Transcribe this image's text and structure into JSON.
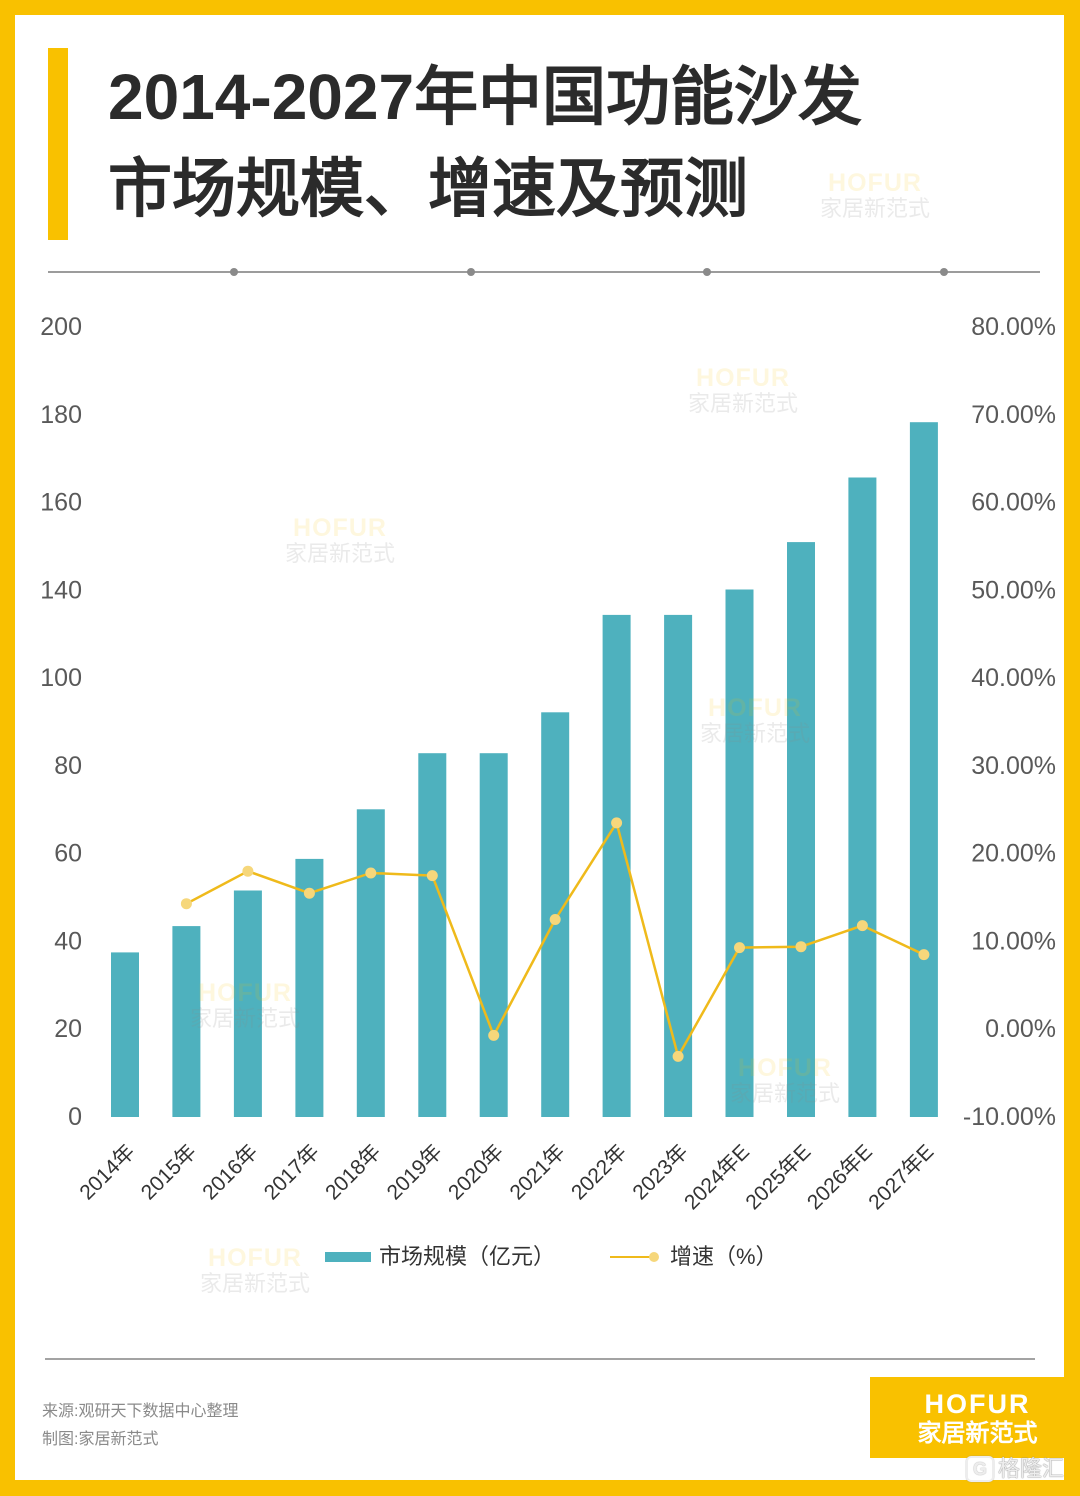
{
  "chart_data": {
    "type": "bar",
    "title_lines": [
      "2014-2027年中国功能沙发",
      "市场规模、增速及预测"
    ],
    "categories": [
      "2014年",
      "2015年",
      "2016年",
      "2017年",
      "2018年",
      "2019年",
      "2020年",
      "2021年",
      "2022年",
      "2023年",
      "2024年E",
      "2025年E",
      "2026年E",
      "2027年E"
    ],
    "y_left": {
      "ticks": [
        0,
        20,
        40,
        60,
        80,
        100,
        140,
        160,
        180,
        200
      ],
      "tick_labels": [
        "0",
        "20",
        "40",
        "60",
        "80",
        "100",
        "140",
        "160",
        "180",
        "200"
      ],
      "range": [
        0,
        200
      ]
    },
    "y_right": {
      "ticks": [
        -10,
        0,
        10,
        20,
        30,
        40,
        50,
        60,
        70,
        80
      ],
      "tick_labels": [
        "-10.00%",
        "0.00%",
        "10.00%",
        "20.00%",
        "30.00%",
        "40.00%",
        "50.00%",
        "60.00%",
        "70.00%",
        "80.00%"
      ],
      "range": [
        -10,
        80
      ]
    },
    "series": [
      {
        "name": "市场规模（亿元）",
        "type": "bar",
        "axis": "left",
        "values": [
          37.5,
          43.5,
          51.6,
          58.8,
          70.1,
          82.9,
          82.9,
          92.2,
          128.8,
          128.8,
          140.2,
          151.0,
          165.7,
          178.3
        ]
      },
      {
        "name": "增速（%）",
        "type": "line",
        "axis": "right",
        "values": [
          null,
          14.3,
          18.0,
          15.5,
          17.8,
          17.5,
          -0.7,
          12.5,
          23.5,
          -3.1,
          9.3,
          9.4,
          11.8,
          8.5
        ]
      }
    ],
    "legend": {
      "position": "bottom"
    },
    "grid": false,
    "xlabel": "",
    "ylabel": ""
  },
  "watermark": {
    "brand": "HOFUR",
    "name": "家居新范式"
  },
  "footer": {
    "source": "来源:观研天下数据中心整理",
    "credit": "制图:家居新范式"
  },
  "logo": {
    "brand": "HOFUR",
    "name": "家居新范式"
  },
  "corner_watermark": {
    "icon": "g-logo-icon",
    "icon_glyph": "G",
    "text": "格隆汇"
  },
  "colors": {
    "accent": "#F9C100",
    "bar": "#4EB1BE",
    "line": "#EFBA1B",
    "marker": "#F6D77B",
    "title": "#2B2B2B",
    "axis_text": "#595959"
  }
}
